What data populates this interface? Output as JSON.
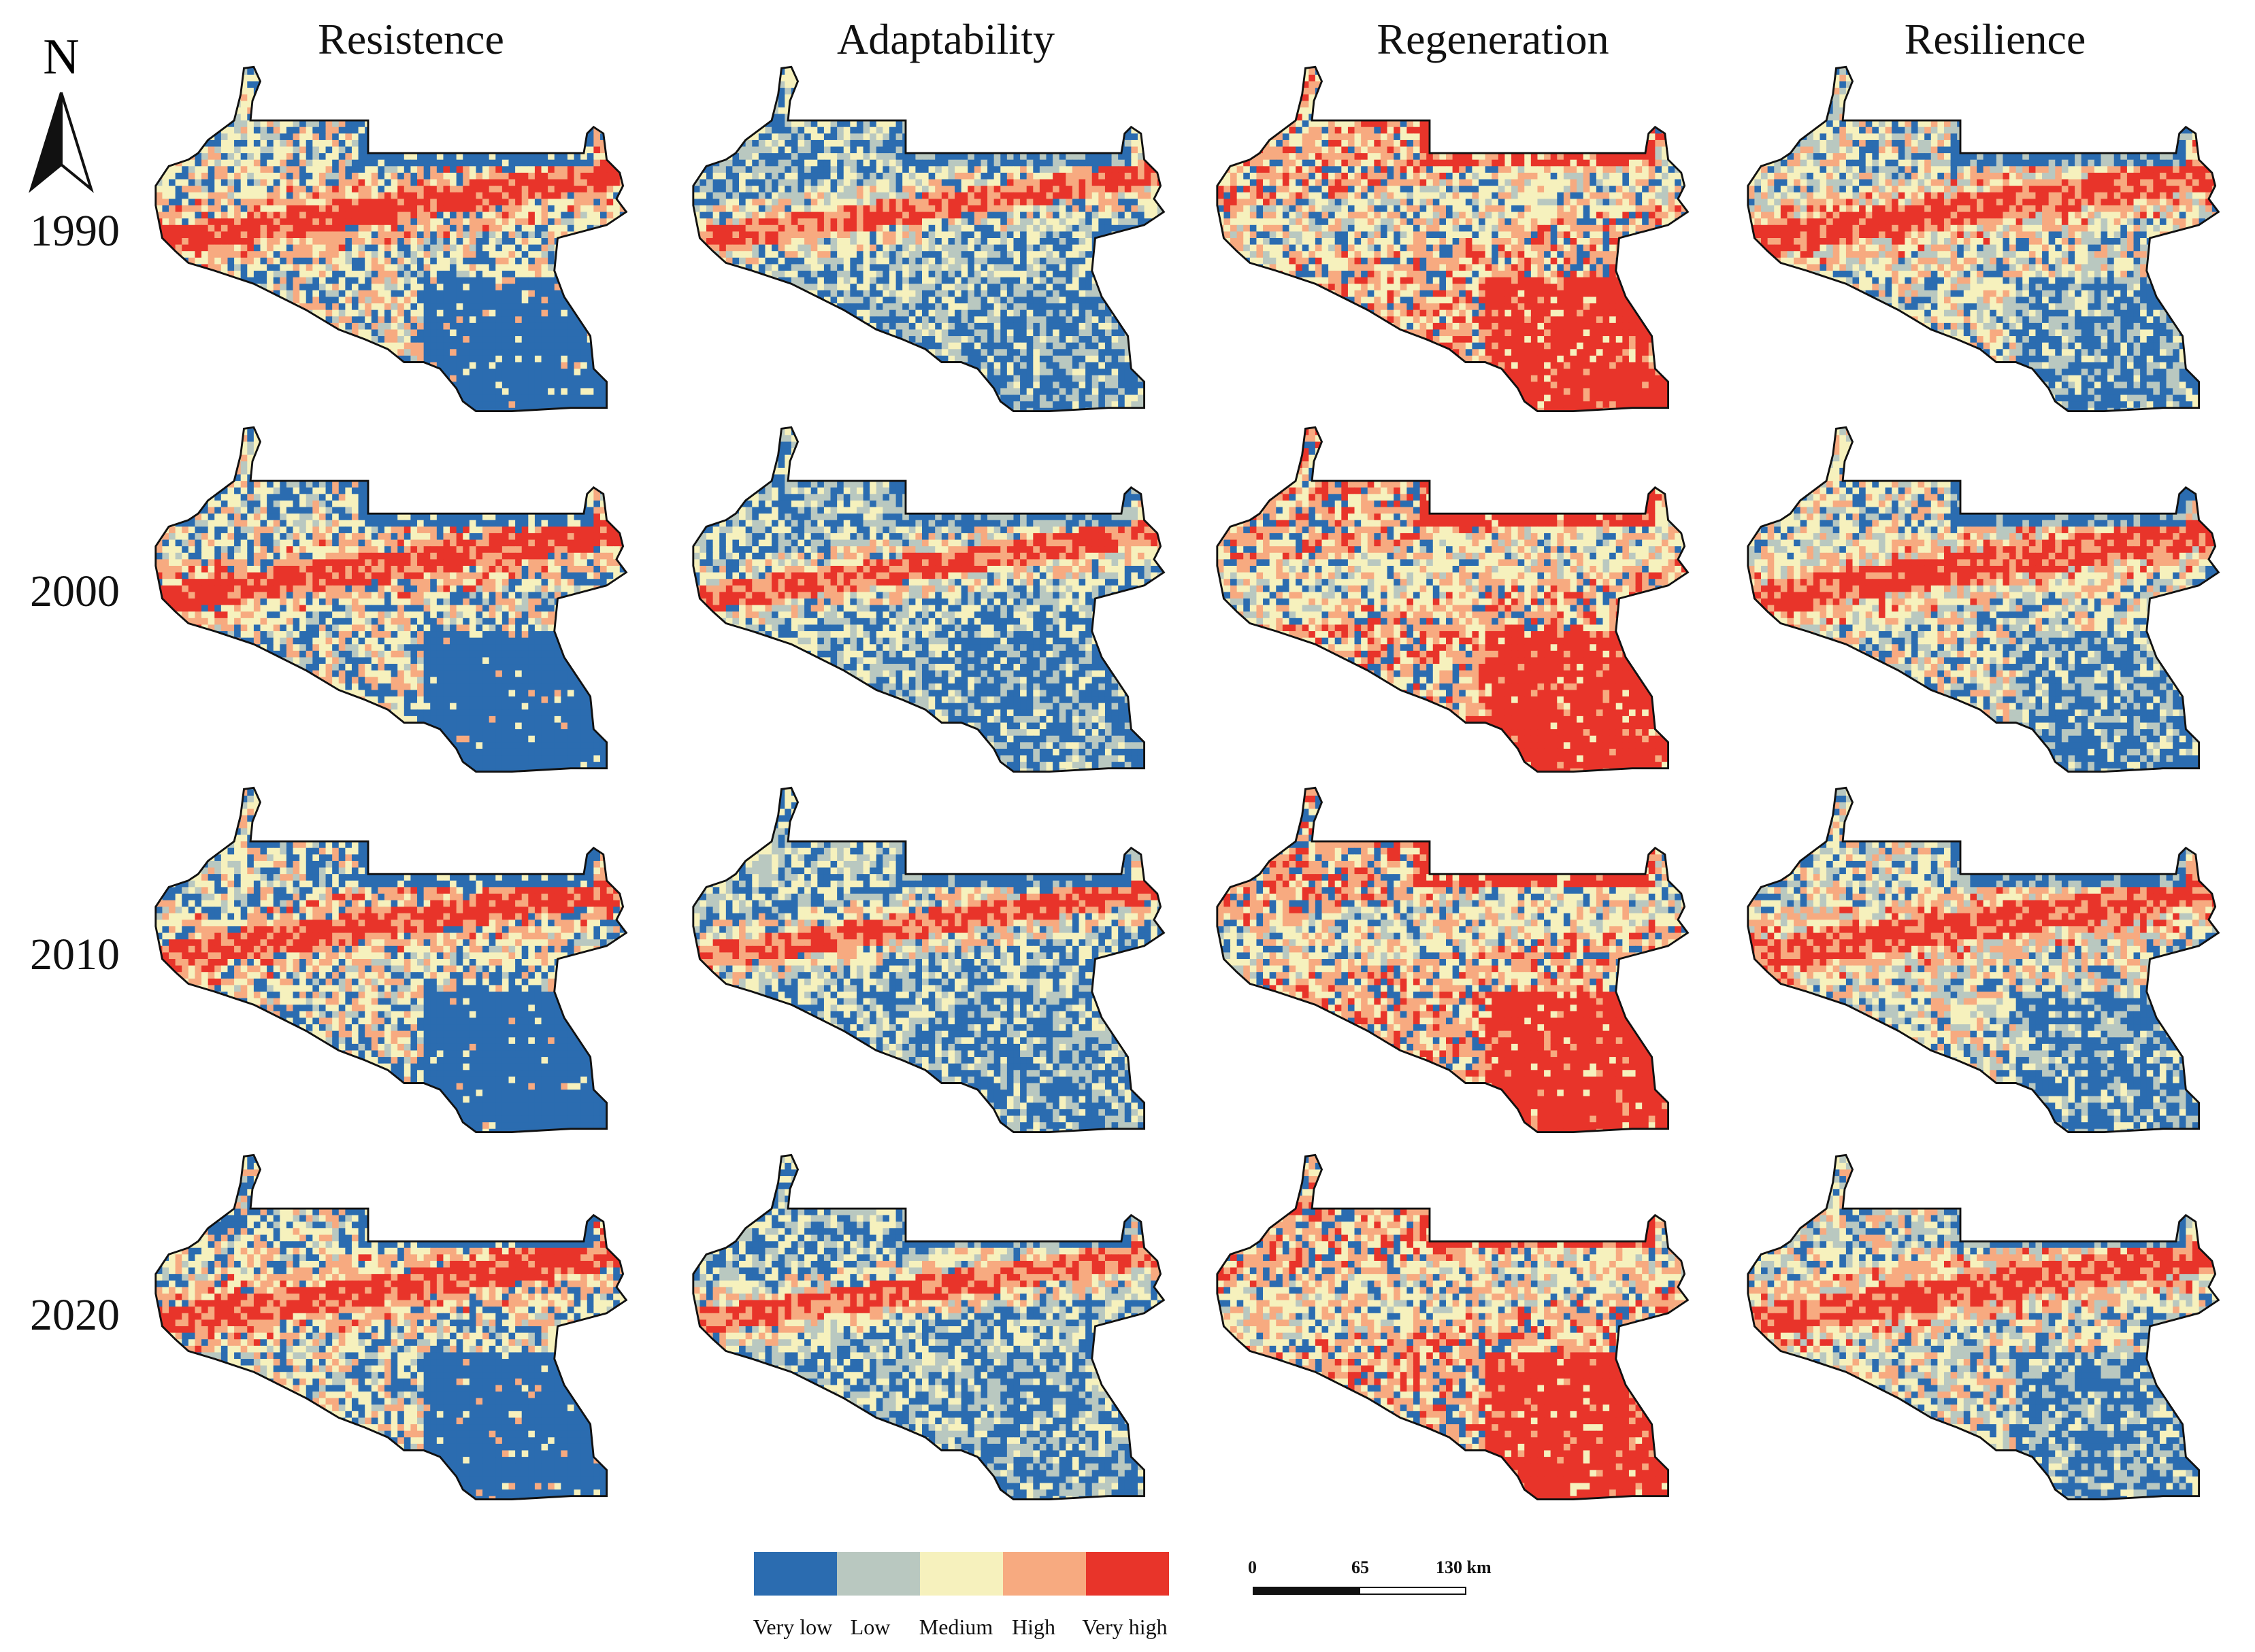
{
  "north_arrow": {
    "label": "N"
  },
  "columns": [
    "Resistence",
    "Adaptability",
    "Regeneration",
    "Resilience"
  ],
  "years": [
    "1990",
    "2000",
    "2010",
    "2020"
  ],
  "legend": {
    "classes": [
      {
        "label": "Very low",
        "color": "#2b6cb0"
      },
      {
        "label": "Low",
        "color": "#b9c8c0"
      },
      {
        "label": "Medium",
        "color": "#f6f1bd"
      },
      {
        "label": "High",
        "color": "#f7aa80"
      },
      {
        "label": "Very high",
        "color": "#e8342a"
      }
    ]
  },
  "scale_bar": {
    "ticks": [
      "0",
      "65",
      "130 km"
    ]
  },
  "colors": {
    "outline": "#111111",
    "background": "#ffffff"
  }
}
